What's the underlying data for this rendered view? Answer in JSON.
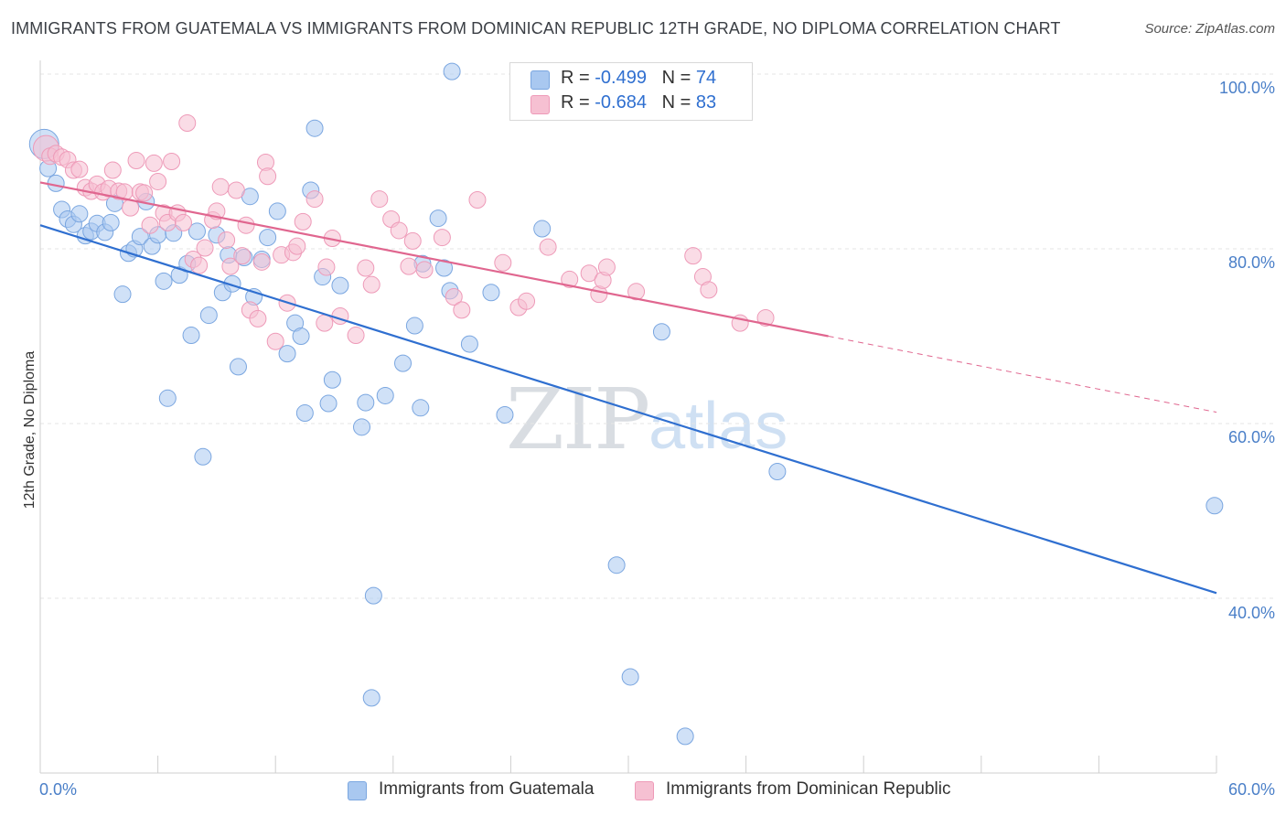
{
  "title": "IMMIGRANTS FROM GUATEMALA VS IMMIGRANTS FROM DOMINICAN REPUBLIC 12TH GRADE, NO DIPLOMA CORRELATION CHART",
  "source": "Source: ZipAtlas.com",
  "watermark": {
    "zip": "ZIP",
    "atlas": "atlas"
  },
  "legend": {
    "r_label": "R =",
    "n_label": "N =",
    "series1": {
      "r": "-0.499",
      "n": "74"
    },
    "series2": {
      "r": "-0.684",
      "n": "83"
    }
  },
  "colors": {
    "blue_fill": "#a9c8f0",
    "blue_stroke": "#7aa6e0",
    "blue_line": "#2f6fd0",
    "pink_fill": "#f6c0d2",
    "pink_stroke": "#ee9ab8",
    "pink_line": "#e0668f",
    "axis_text": "#4a7fc8",
    "grid": "#e6e6e6"
  },
  "chart_data": {
    "type": "scatter",
    "title": "IMMIGRANTS FROM GUATEMALA VS IMMIGRANTS FROM DOMINICAN REPUBLIC 12TH GRADE, NO DIPLOMA CORRELATION CHART",
    "xlabel": "",
    "ylabel": "12th Grade, No Diploma",
    "xlim": [
      0,
      60
    ],
    "ylim": [
      20,
      104
    ],
    "x_tick_labels": [
      "0.0%",
      "60.0%"
    ],
    "y_ticks": [
      40,
      60,
      80,
      100
    ],
    "y_tick_labels": [
      "40.0%",
      "60.0%",
      "80.0%",
      "100.0%"
    ],
    "grid": true,
    "legend_position": "top-center",
    "series": [
      {
        "name": "Immigrants from Guatemala",
        "r": -0.499,
        "n": 74,
        "trend": {
          "x": [
            0,
            60
          ],
          "y": [
            82.7,
            40.6
          ]
        },
        "points": [
          [
            0.2,
            92.0
          ],
          [
            0.4,
            89.2
          ],
          [
            0.8,
            87.5
          ],
          [
            1.1,
            84.5
          ],
          [
            1.4,
            83.4
          ],
          [
            1.7,
            82.8
          ],
          [
            2.0,
            84.0
          ],
          [
            2.3,
            81.5
          ],
          [
            2.6,
            82.0
          ],
          [
            2.9,
            82.9
          ],
          [
            3.3,
            81.9
          ],
          [
            3.6,
            83.0
          ],
          [
            3.8,
            85.2
          ],
          [
            4.2,
            74.8
          ],
          [
            4.5,
            79.5
          ],
          [
            4.8,
            80.0
          ],
          [
            5.1,
            81.4
          ],
          [
            5.4,
            85.4
          ],
          [
            5.7,
            80.3
          ],
          [
            6.0,
            81.6
          ],
          [
            6.3,
            76.3
          ],
          [
            6.5,
            62.9
          ],
          [
            6.8,
            81.8
          ],
          [
            7.1,
            77.0
          ],
          [
            7.5,
            78.3
          ],
          [
            7.7,
            70.1
          ],
          [
            8.0,
            82.0
          ],
          [
            8.3,
            56.2
          ],
          [
            8.6,
            72.4
          ],
          [
            9.0,
            81.6
          ],
          [
            9.3,
            75.0
          ],
          [
            9.6,
            79.3
          ],
          [
            9.8,
            76.0
          ],
          [
            10.1,
            66.5
          ],
          [
            10.4,
            79.0
          ],
          [
            10.7,
            86.0
          ],
          [
            10.9,
            74.5
          ],
          [
            11.3,
            78.8
          ],
          [
            11.6,
            81.3
          ],
          [
            12.1,
            84.3
          ],
          [
            12.6,
            68.0
          ],
          [
            13.0,
            71.5
          ],
          [
            13.3,
            70.0
          ],
          [
            13.5,
            61.2
          ],
          [
            13.8,
            86.7
          ],
          [
            14.0,
            93.8
          ],
          [
            14.4,
            76.8
          ],
          [
            14.7,
            62.3
          ],
          [
            14.9,
            65.0
          ],
          [
            15.3,
            75.8
          ],
          [
            16.4,
            59.6
          ],
          [
            16.6,
            62.4
          ],
          [
            16.9,
            28.6
          ],
          [
            17.0,
            40.3
          ],
          [
            17.6,
            63.2
          ],
          [
            18.5,
            66.9
          ],
          [
            19.1,
            71.2
          ],
          [
            19.4,
            61.8
          ],
          [
            19.5,
            78.3
          ],
          [
            20.3,
            83.5
          ],
          [
            20.6,
            77.8
          ],
          [
            20.9,
            75.2
          ],
          [
            21.9,
            69.1
          ],
          [
            23.0,
            75.0
          ],
          [
            23.7,
            61.0
          ],
          [
            25.6,
            82.3
          ],
          [
            29.4,
            43.8
          ],
          [
            30.1,
            31.0
          ],
          [
            31.7,
            70.5
          ],
          [
            32.9,
            24.2
          ],
          [
            34.3,
            97.7
          ],
          [
            37.6,
            54.5
          ],
          [
            59.9,
            50.6
          ],
          [
            21.0,
            100.3
          ]
        ]
      },
      {
        "name": "Immigrants from Dominican Republic",
        "r": -0.684,
        "n": 83,
        "trend": {
          "x": [
            0,
            40.2,
            60
          ],
          "y": [
            87.6,
            70.0,
            61.3
          ]
        },
        "trend_solid_until_x": 40.2,
        "points": [
          [
            0.3,
            91.5
          ],
          [
            0.5,
            90.6
          ],
          [
            0.8,
            90.9
          ],
          [
            1.1,
            90.5
          ],
          [
            1.4,
            90.2
          ],
          [
            1.7,
            89.0
          ],
          [
            2.0,
            89.1
          ],
          [
            2.3,
            87.0
          ],
          [
            2.6,
            86.6
          ],
          [
            2.9,
            87.4
          ],
          [
            3.2,
            86.5
          ],
          [
            3.5,
            86.9
          ],
          [
            3.7,
            89.0
          ],
          [
            4.0,
            86.6
          ],
          [
            4.3,
            86.5
          ],
          [
            4.6,
            84.7
          ],
          [
            4.9,
            90.1
          ],
          [
            5.1,
            86.5
          ],
          [
            5.3,
            86.4
          ],
          [
            5.6,
            82.7
          ],
          [
            5.8,
            89.8
          ],
          [
            6.0,
            87.7
          ],
          [
            6.3,
            84.1
          ],
          [
            6.5,
            83.0
          ],
          [
            6.7,
            90.0
          ],
          [
            7.0,
            84.1
          ],
          [
            7.3,
            83.0
          ],
          [
            7.5,
            94.4
          ],
          [
            7.8,
            78.8
          ],
          [
            8.1,
            78.1
          ],
          [
            8.4,
            80.1
          ],
          [
            8.8,
            83.3
          ],
          [
            9.0,
            84.3
          ],
          [
            9.2,
            87.1
          ],
          [
            9.5,
            81.0
          ],
          [
            9.7,
            78.0
          ],
          [
            10.0,
            86.7
          ],
          [
            10.3,
            79.2
          ],
          [
            10.5,
            82.7
          ],
          [
            10.7,
            73.0
          ],
          [
            11.1,
            72.0
          ],
          [
            11.3,
            78.5
          ],
          [
            11.5,
            89.9
          ],
          [
            11.6,
            88.3
          ],
          [
            12.0,
            69.4
          ],
          [
            12.3,
            79.3
          ],
          [
            12.6,
            73.8
          ],
          [
            12.9,
            79.6
          ],
          [
            13.1,
            80.3
          ],
          [
            13.4,
            83.1
          ],
          [
            14.0,
            85.7
          ],
          [
            14.5,
            71.5
          ],
          [
            14.6,
            77.9
          ],
          [
            14.9,
            81.2
          ],
          [
            15.3,
            72.3
          ],
          [
            16.1,
            70.1
          ],
          [
            16.6,
            77.8
          ],
          [
            16.9,
            75.9
          ],
          [
            17.3,
            85.7
          ],
          [
            17.9,
            83.4
          ],
          [
            18.3,
            82.1
          ],
          [
            18.8,
            78.0
          ],
          [
            19.0,
            80.9
          ],
          [
            19.6,
            77.6
          ],
          [
            20.5,
            81.3
          ],
          [
            21.1,
            74.5
          ],
          [
            21.5,
            73.0
          ],
          [
            22.3,
            85.6
          ],
          [
            23.6,
            78.4
          ],
          [
            24.4,
            73.3
          ],
          [
            24.8,
            74.0
          ],
          [
            25.9,
            80.2
          ],
          [
            27.0,
            76.5
          ],
          [
            28.0,
            77.2
          ],
          [
            28.5,
            74.8
          ],
          [
            28.7,
            76.4
          ],
          [
            28.9,
            77.9
          ],
          [
            30.4,
            75.1
          ],
          [
            33.3,
            79.2
          ],
          [
            33.8,
            76.8
          ],
          [
            34.1,
            75.3
          ],
          [
            35.7,
            71.5
          ],
          [
            37.0,
            72.1
          ]
        ]
      }
    ]
  },
  "bottom_legend": [
    {
      "label": "Immigrants from Guatemala"
    },
    {
      "label": "Immigrants from Dominican Republic"
    }
  ]
}
